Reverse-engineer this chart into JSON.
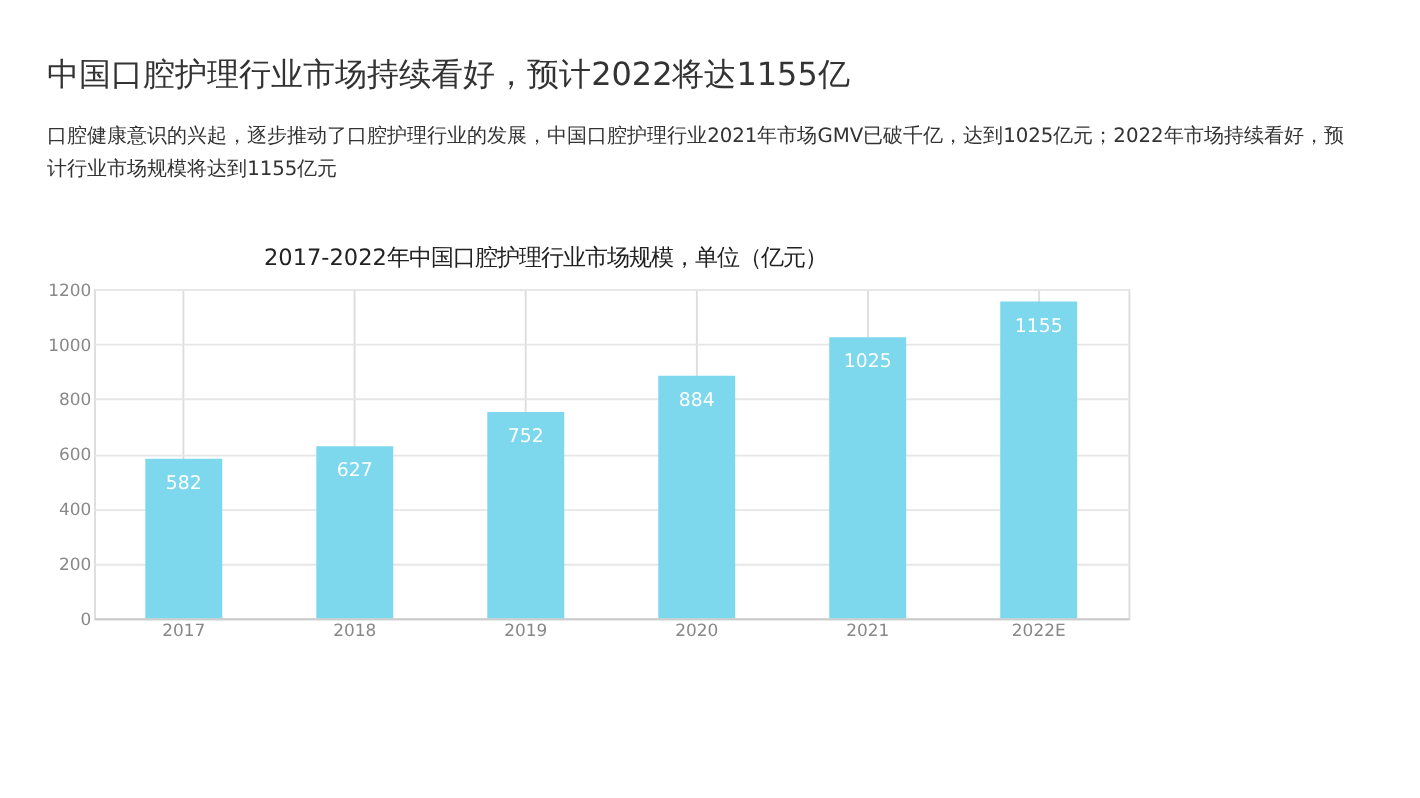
{
  "chart_data": {
    "type": "bar",
    "title": "中国口腔护理行业市场持续看好，预计2022将达1155亿",
    "subtitle": "口腔健康意识的兴起，逐步推动了口腔护理行业的发展，中国口腔护理行业2021年市场GMV已破千亿，达到1025亿元；2022年市场持续看好，预计行业市场规模将达到1155亿元",
    "annotations": [
      "2017-2022年中国口腔护理行业市场规模，单位（亿元）"
    ],
    "categories": [
      "2017",
      "2018",
      "2019",
      "2020",
      "2021",
      "2022E"
    ],
    "values": [
      582,
      627,
      752,
      884,
      1025,
      1155
    ],
    "color": "#7dd8ee",
    "ylim": [
      0,
      1200
    ],
    "yticks": [
      0,
      200,
      400,
      600,
      800,
      1000,
      1200
    ],
    "grid": true,
    "data_labels": true
  }
}
